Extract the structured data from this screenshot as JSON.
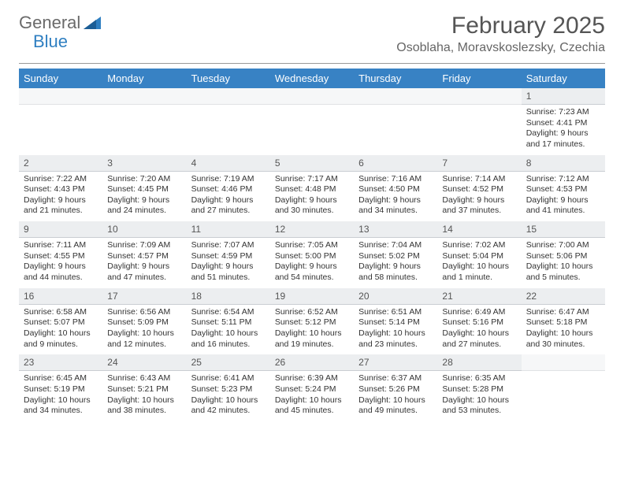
{
  "logo": {
    "text1": "General",
    "text2": "Blue"
  },
  "title": "February 2025",
  "location": "Osoblaha, Moravskoslezsky, Czechia",
  "header_bg": "#3882c4",
  "daynum_bg": "#eceef0",
  "dayNames": [
    "Sunday",
    "Monday",
    "Tuesday",
    "Wednesday",
    "Thursday",
    "Friday",
    "Saturday"
  ],
  "weeks": [
    [
      null,
      null,
      null,
      null,
      null,
      null,
      {
        "n": "1",
        "sr": "7:23 AM",
        "ss": "4:41 PM",
        "dl": "9 hours and 17 minutes."
      }
    ],
    [
      {
        "n": "2",
        "sr": "7:22 AM",
        "ss": "4:43 PM",
        "dl": "9 hours and 21 minutes."
      },
      {
        "n": "3",
        "sr": "7:20 AM",
        "ss": "4:45 PM",
        "dl": "9 hours and 24 minutes."
      },
      {
        "n": "4",
        "sr": "7:19 AM",
        "ss": "4:46 PM",
        "dl": "9 hours and 27 minutes."
      },
      {
        "n": "5",
        "sr": "7:17 AM",
        "ss": "4:48 PM",
        "dl": "9 hours and 30 minutes."
      },
      {
        "n": "6",
        "sr": "7:16 AM",
        "ss": "4:50 PM",
        "dl": "9 hours and 34 minutes."
      },
      {
        "n": "7",
        "sr": "7:14 AM",
        "ss": "4:52 PM",
        "dl": "9 hours and 37 minutes."
      },
      {
        "n": "8",
        "sr": "7:12 AM",
        "ss": "4:53 PM",
        "dl": "9 hours and 41 minutes."
      }
    ],
    [
      {
        "n": "9",
        "sr": "7:11 AM",
        "ss": "4:55 PM",
        "dl": "9 hours and 44 minutes."
      },
      {
        "n": "10",
        "sr": "7:09 AM",
        "ss": "4:57 PM",
        "dl": "9 hours and 47 minutes."
      },
      {
        "n": "11",
        "sr": "7:07 AM",
        "ss": "4:59 PM",
        "dl": "9 hours and 51 minutes."
      },
      {
        "n": "12",
        "sr": "7:05 AM",
        "ss": "5:00 PM",
        "dl": "9 hours and 54 minutes."
      },
      {
        "n": "13",
        "sr": "7:04 AM",
        "ss": "5:02 PM",
        "dl": "9 hours and 58 minutes."
      },
      {
        "n": "14",
        "sr": "7:02 AM",
        "ss": "5:04 PM",
        "dl": "10 hours and 1 minute."
      },
      {
        "n": "15",
        "sr": "7:00 AM",
        "ss": "5:06 PM",
        "dl": "10 hours and 5 minutes."
      }
    ],
    [
      {
        "n": "16",
        "sr": "6:58 AM",
        "ss": "5:07 PM",
        "dl": "10 hours and 9 minutes."
      },
      {
        "n": "17",
        "sr": "6:56 AM",
        "ss": "5:09 PM",
        "dl": "10 hours and 12 minutes."
      },
      {
        "n": "18",
        "sr": "6:54 AM",
        "ss": "5:11 PM",
        "dl": "10 hours and 16 minutes."
      },
      {
        "n": "19",
        "sr": "6:52 AM",
        "ss": "5:12 PM",
        "dl": "10 hours and 19 minutes."
      },
      {
        "n": "20",
        "sr": "6:51 AM",
        "ss": "5:14 PM",
        "dl": "10 hours and 23 minutes."
      },
      {
        "n": "21",
        "sr": "6:49 AM",
        "ss": "5:16 PM",
        "dl": "10 hours and 27 minutes."
      },
      {
        "n": "22",
        "sr": "6:47 AM",
        "ss": "5:18 PM",
        "dl": "10 hours and 30 minutes."
      }
    ],
    [
      {
        "n": "23",
        "sr": "6:45 AM",
        "ss": "5:19 PM",
        "dl": "10 hours and 34 minutes."
      },
      {
        "n": "24",
        "sr": "6:43 AM",
        "ss": "5:21 PM",
        "dl": "10 hours and 38 minutes."
      },
      {
        "n": "25",
        "sr": "6:41 AM",
        "ss": "5:23 PM",
        "dl": "10 hours and 42 minutes."
      },
      {
        "n": "26",
        "sr": "6:39 AM",
        "ss": "5:24 PM",
        "dl": "10 hours and 45 minutes."
      },
      {
        "n": "27",
        "sr": "6:37 AM",
        "ss": "5:26 PM",
        "dl": "10 hours and 49 minutes."
      },
      {
        "n": "28",
        "sr": "6:35 AM",
        "ss": "5:28 PM",
        "dl": "10 hours and 53 minutes."
      },
      null
    ]
  ],
  "labels": {
    "sunrise": "Sunrise:",
    "sunset": "Sunset:",
    "daylight": "Daylight:"
  }
}
